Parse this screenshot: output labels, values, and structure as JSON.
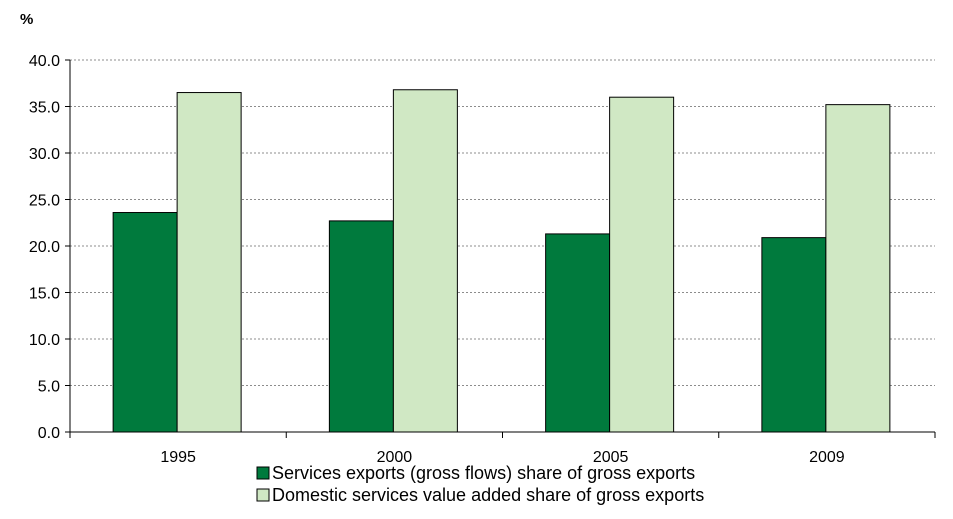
{
  "chart_data": {
    "type": "bar",
    "title": "",
    "ylabel": "%",
    "xlabel": "",
    "categories": [
      "1995",
      "2000",
      "2005",
      "2009"
    ],
    "series": [
      {
        "name": "Services exports (gross flows) share of gross exports",
        "values": [
          23.6,
          22.7,
          21.3,
          20.9
        ],
        "color": "#007A3D"
      },
      {
        "name": "Domestic services value added share of gross exports",
        "values": [
          36.5,
          36.8,
          36.0,
          35.2
        ],
        "color": "#D0E8C4"
      }
    ],
    "ylim": [
      0,
      40
    ],
    "yticks": [
      "0.0",
      "5.0",
      "10.0",
      "15.0",
      "20.0",
      "25.0",
      "30.0",
      "35.0",
      "40.0"
    ],
    "grid": true,
    "legend_position": "bottom"
  }
}
